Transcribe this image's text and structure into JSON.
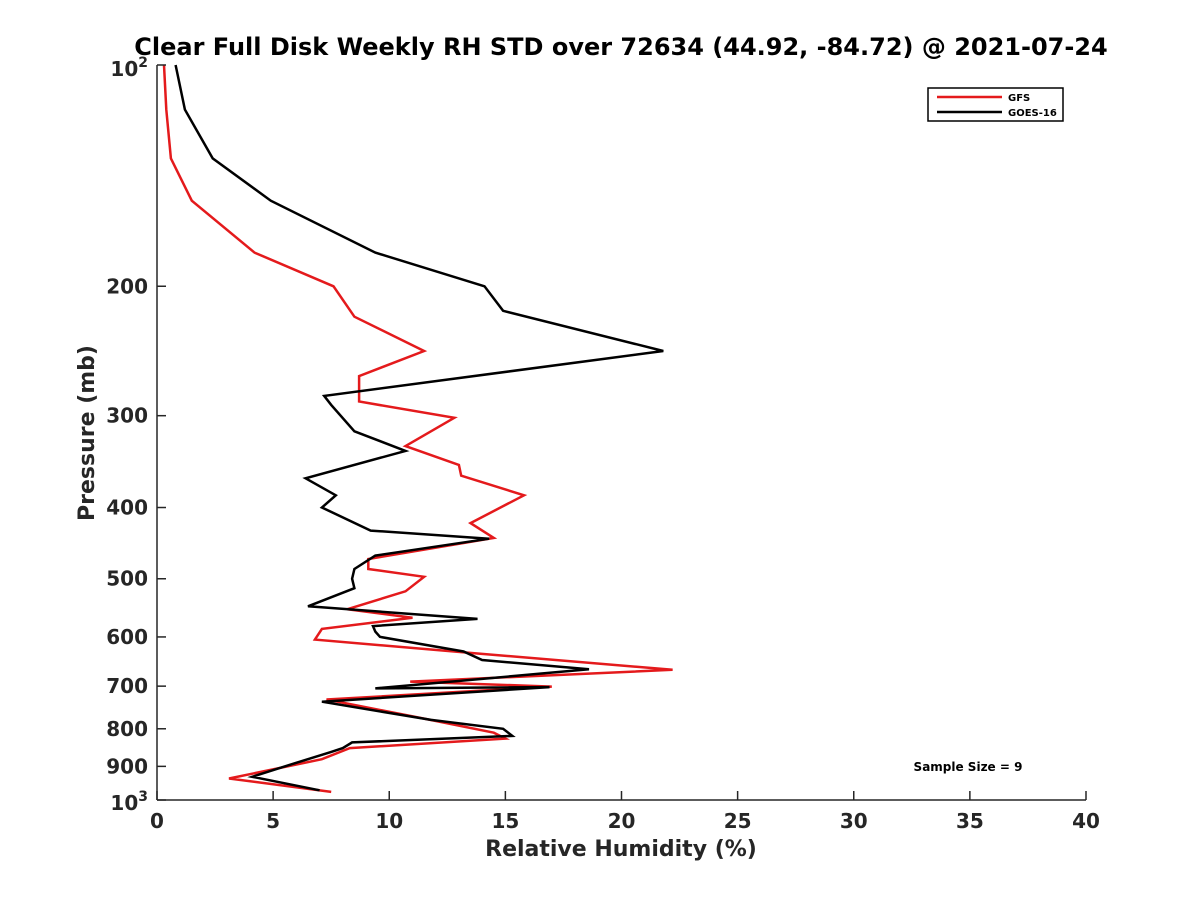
{
  "chart_data": {
    "type": "line",
    "title": "Clear Full Disk Weekly RH STD over 72634 (44.92, -84.72) @ 2021-07-24",
    "xlabel": "Relative Humidity (%)",
    "ylabel": "Pressure (mb)",
    "xlim": [
      0,
      40
    ],
    "ylim": [
      100,
      1000
    ],
    "yscale": "log",
    "y_reversed": true,
    "x_ticks": [
      0,
      5,
      10,
      15,
      20,
      25,
      30,
      35,
      40
    ],
    "x_tick_labels": [
      "0",
      "5",
      "10",
      "15",
      "20",
      "25",
      "30",
      "35",
      "40"
    ],
    "y_ticks": [
      200,
      300,
      400,
      500,
      600,
      700,
      800,
      900
    ],
    "y_tick_labels": [
      "200",
      "300",
      "400",
      "500",
      "600",
      "700",
      "800",
      "900"
    ],
    "y_end_labels": {
      "top": {
        "base": "10",
        "exp": "2"
      },
      "bottom": {
        "base": "10",
        "exp": "3"
      }
    },
    "legend_position": "top-right",
    "annotation": "Sample Size = 9",
    "series": [
      {
        "name": "GFS",
        "color": "#e41a1c",
        "points": [
          [
            0.3,
            100
          ],
          [
            0.4,
            115
          ],
          [
            0.6,
            134
          ],
          [
            1.5,
            153
          ],
          [
            4.2,
            180
          ],
          [
            7.6,
            200
          ],
          [
            8.5,
            220
          ],
          [
            11.5,
            245
          ],
          [
            8.7,
            265
          ],
          [
            8.7,
            287
          ],
          [
            12.8,
            302
          ],
          [
            10.7,
            330
          ],
          [
            13,
            350
          ],
          [
            13.1,
            362
          ],
          [
            15.8,
            385
          ],
          [
            13.5,
            420
          ],
          [
            14.5,
            440
          ],
          [
            9.1,
            470
          ],
          [
            9.1,
            485
          ],
          [
            11.5,
            497
          ],
          [
            10.7,
            520
          ],
          [
            8.2,
            550
          ],
          [
            11,
            565
          ],
          [
            7.1,
            585
          ],
          [
            6.8,
            605
          ],
          [
            13.8,
            632
          ],
          [
            22.2,
            665
          ],
          [
            10.9,
            690
          ],
          [
            17,
            701
          ],
          [
            7.3,
            730
          ],
          [
            11.5,
            775
          ],
          [
            14.5,
            810
          ],
          [
            15,
            825
          ],
          [
            8.3,
            850
          ],
          [
            7.1,
            880
          ],
          [
            3.1,
            935
          ],
          [
            7.5,
            975
          ]
        ]
      },
      {
        "name": "GOES-16",
        "color": "#000000",
        "points": [
          [
            0.8,
            100
          ],
          [
            1.2,
            115
          ],
          [
            2.4,
            134
          ],
          [
            4.9,
            153
          ],
          [
            9.4,
            180
          ],
          [
            14.1,
            200
          ],
          [
            14.9,
            216
          ],
          [
            21.8,
            245
          ],
          [
            7.2,
            282
          ],
          [
            7.5,
            290
          ],
          [
            8.5,
            315
          ],
          [
            10.7,
            335
          ],
          [
            6.4,
            365
          ],
          [
            7.7,
            385
          ],
          [
            7.1,
            400
          ],
          [
            9.2,
            430
          ],
          [
            14.3,
            441
          ],
          [
            9.4,
            465
          ],
          [
            8.5,
            485
          ],
          [
            8.4,
            500
          ],
          [
            8.5,
            515
          ],
          [
            6.5,
            545
          ],
          [
            13.8,
            567
          ],
          [
            9.3,
            580
          ],
          [
            9.4,
            590
          ],
          [
            9.6,
            600
          ],
          [
            13.2,
            628
          ],
          [
            14,
            645
          ],
          [
            18.6,
            664
          ],
          [
            9.4,
            705
          ],
          [
            16.9,
            702
          ],
          [
            7.1,
            735
          ],
          [
            11.8,
            778
          ],
          [
            14.9,
            800
          ],
          [
            15.3,
            818
          ],
          [
            8.4,
            835
          ],
          [
            8,
            850
          ],
          [
            7.5,
            860
          ],
          [
            5.5,
            900
          ],
          [
            4.1,
            930
          ],
          [
            7,
            970
          ]
        ]
      }
    ]
  }
}
